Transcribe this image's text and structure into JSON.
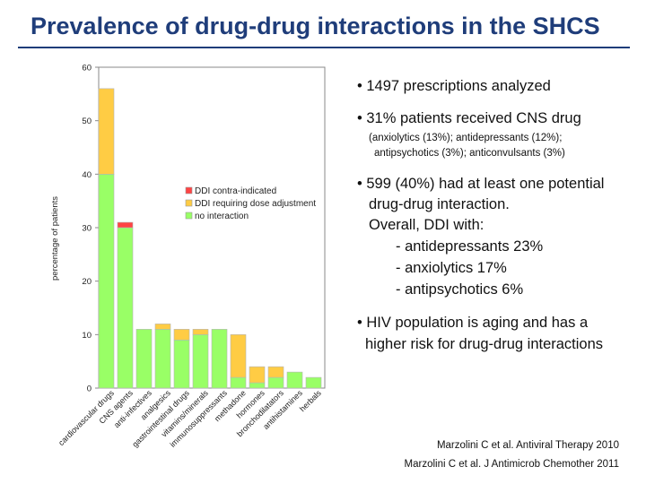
{
  "title": "Prevalence of drug-drug interactions in the SHCS",
  "chart_data": {
    "type": "bar",
    "stacked": true,
    "title": "",
    "xlabel": "",
    "ylabel": "percentage of patients",
    "ylim": [
      0,
      60
    ],
    "yticks": [
      0,
      10,
      20,
      30,
      40,
      50,
      60
    ],
    "grid": false,
    "legend_position": "upper-middle",
    "categories": [
      "cardiovascular drugs",
      "CNS agents",
      "anti-infectives",
      "analgesics",
      "gastrointestinal drugs",
      "vitamins/minerals",
      "immunosuppressants",
      "methadone",
      "hormones",
      "bronchodilatators",
      "antihistamines",
      "herbals"
    ],
    "series": [
      {
        "name": "no interaction",
        "color": "#99ff66",
        "values": [
          40,
          30,
          11,
          11,
          9,
          10,
          11,
          2,
          1,
          2,
          3,
          2
        ]
      },
      {
        "name": "DDI requiring dose adjustment",
        "color": "#ffcc44",
        "values": [
          16,
          0,
          0,
          1,
          2,
          1,
          0,
          8,
          3,
          2,
          0,
          0
        ]
      },
      {
        "name": "DDI contra-indicated",
        "color": "#ff4444",
        "values": [
          0,
          1,
          0,
          0,
          0,
          0,
          0,
          0,
          0,
          0,
          0,
          0
        ]
      }
    ],
    "legend_entries": [
      "DDI contra-indicated",
      "DDI requiring dose adjustment",
      "no interaction"
    ]
  },
  "bullets": {
    "b1": "• 1497 prescriptions analyzed",
    "b2": "• 31% patients received CNS drug",
    "b2_sub1": "(anxiolytics (13%); antidepressants (12%);",
    "b2_sub2": "antipsychotics (3%); anticonvulsants (3%)",
    "b3_l1": "• 599 (40%) had at least one potential",
    "b3_l2": "drug-drug interaction.",
    "b3_l3": "Overall, DDI with:",
    "b3_l4": "- antidepressants 23%",
    "b3_l5": "- anxiolytics 17%",
    "b3_l6": "- antipsychotics 6%",
    "b4_l1": "• HIV population is aging and has a",
    "b4_l2": "higher risk for drug-drug interactions"
  },
  "citations": {
    "c1": "Marzolini C et al. Antiviral Therapy 2010",
    "c2": "Marzolini C et al. J Antimicrob Chemother  2011"
  }
}
